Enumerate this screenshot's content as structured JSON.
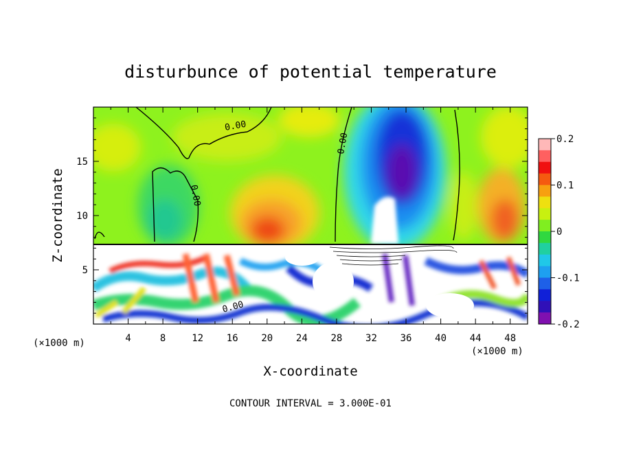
{
  "chart_data": {
    "type": "heatmap",
    "title": "disturbunce of potential temperature",
    "xlabel": "X-coordinate",
    "ylabel": "Z-coordinate",
    "x_unit": "(×1000 m)",
    "x_unit_right": "(×1000 m)",
    "xlim": [
      0,
      50
    ],
    "ylim": [
      0,
      20
    ],
    "x_ticks": [
      4,
      8,
      12,
      16,
      20,
      24,
      28,
      32,
      36,
      40,
      44,
      48
    ],
    "y_ticks": [
      5,
      10,
      15
    ],
    "colorbar": {
      "range": [
        -0.2,
        0.2
      ],
      "ticks": [
        "0.2",
        "0.1",
        "0",
        "-0.1",
        "-0.2"
      ]
    },
    "contour_label": "0.00",
    "footer": "CONTOUR INTERVAL = 3.000E-01"
  }
}
